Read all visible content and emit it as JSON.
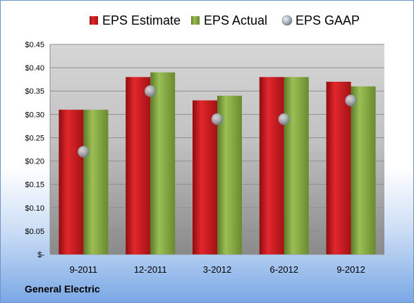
{
  "company_label": "General Electric",
  "colors": {
    "estimate": "#c8161b",
    "actual": "#7ea23a",
    "gaap": "#b9c3cf"
  },
  "chart_data": {
    "type": "bar",
    "categories": [
      "9-2011",
      "12-2011",
      "3-2012",
      "6-2012",
      "9-2012"
    ],
    "series": [
      {
        "name": "EPS Estimate",
        "type": "bar",
        "values": [
          0.31,
          0.38,
          0.33,
          0.38,
          0.37
        ]
      },
      {
        "name": "EPS Actual",
        "type": "bar",
        "values": [
          0.31,
          0.39,
          0.34,
          0.38,
          0.36
        ]
      },
      {
        "name": "EPS GAAP",
        "type": "scatter",
        "values": [
          0.22,
          0.35,
          0.29,
          0.29,
          0.33
        ]
      }
    ],
    "ylim": [
      0,
      0.45
    ],
    "yticks": [
      0,
      0.05,
      0.1,
      0.15,
      0.2,
      0.25,
      0.3,
      0.35,
      0.4,
      0.45
    ],
    "ytick_labels": [
      "$-",
      "$0.05",
      "$0.10",
      "$0.15",
      "$0.20",
      "$0.25",
      "$0.30",
      "$0.35",
      "$0.40",
      "$0.45"
    ],
    "grid": true,
    "legend_position": "top"
  }
}
